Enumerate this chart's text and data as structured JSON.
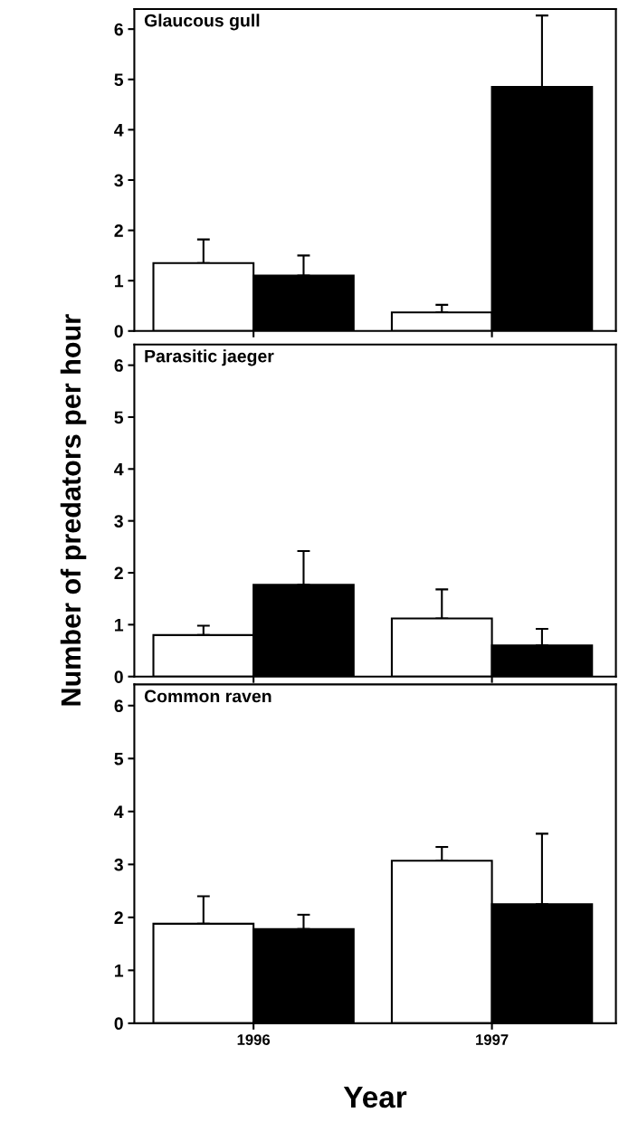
{
  "chart_data": [
    {
      "type": "bar",
      "title": "Glaucous gull",
      "categories": [
        "1996",
        "1997"
      ],
      "tick_labels": "y",
      "ylim": [
        0,
        6.4
      ],
      "yticks": [
        0,
        1,
        2,
        3,
        4,
        5,
        6
      ],
      "series": [
        {
          "color": "#ffffff",
          "values": [
            1.35,
            0.37
          ],
          "errors": [
            [
              1.35,
              1.82
            ],
            [
              0.37,
              0.52
            ]
          ]
        },
        {
          "color": "#000000",
          "values": [
            1.1,
            4.85
          ],
          "errors": [
            [
              1.1,
              1.5
            ],
            [
              4.85,
              6.27
            ]
          ]
        }
      ]
    },
    {
      "type": "bar",
      "title": "Parasitic jaeger",
      "ylabel": "Number of predators per hour",
      "categories": [
        "1996",
        "1997"
      ],
      "tick_labels": "y",
      "ylim": [
        0,
        6.4
      ],
      "yticks": [
        0,
        1,
        2,
        3,
        4,
        5,
        6
      ],
      "series": [
        {
          "color": "#ffffff",
          "values": [
            0.8,
            1.12
          ],
          "errors": [
            [
              0.8,
              0.98
            ],
            [
              1.12,
              1.68
            ]
          ]
        },
        {
          "color": "#000000",
          "values": [
            1.77,
            0.6
          ],
          "errors": [
            [
              1.77,
              2.42
            ],
            [
              0.6,
              0.92
            ]
          ]
        }
      ]
    },
    {
      "type": "bar",
      "title": "Common raven",
      "xlabel": "Year",
      "categories": [
        "1996",
        "1997"
      ],
      "ylim": [
        0,
        6.4
      ],
      "yticks": [
        0,
        1,
        2,
        3,
        4,
        5,
        6
      ],
      "series": [
        {
          "color": "#ffffff",
          "values": [
            1.88,
            3.07
          ],
          "errors": [
            [
              1.88,
              2.4
            ],
            [
              3.07,
              3.33
            ]
          ]
        },
        {
          "color": "#000000",
          "values": [
            1.78,
            2.25
          ],
          "errors": [
            [
              1.78,
              2.05
            ],
            [
              2.25,
              3.58
            ]
          ]
        }
      ]
    }
  ]
}
